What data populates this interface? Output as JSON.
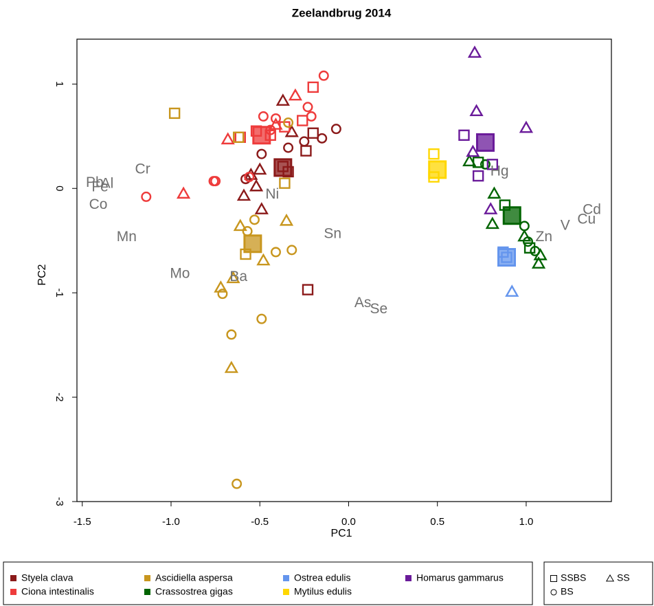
{
  "chart_data": {
    "type": "scatter",
    "title": "Zeelandbrug 2014",
    "xlabel": "PC1",
    "ylabel": "PC2",
    "xlim": [
      -1.53,
      1.48
    ],
    "ylim": [
      -3.0,
      1.43
    ],
    "xticks": [
      -1.5,
      {
        "value": -1.0,
        "label": "-1.0"
      },
      -0.5,
      {
        "value": 0.0,
        "label": "0.0"
      },
      0.5,
      {
        "value": 1.0,
        "label": "1.0"
      }
    ],
    "yticks": [
      -3,
      -2,
      -1,
      0,
      1
    ],
    "variable_color": "#707070",
    "variables": [
      {
        "label": "Pb",
        "x": -1.43,
        "y": 0.05
      },
      {
        "label": "Fe",
        "x": -1.4,
        "y": 0.01
      },
      {
        "label": "Al",
        "x": -1.36,
        "y": 0.04
      },
      {
        "label": "Cr",
        "x": -1.16,
        "y": 0.18
      },
      {
        "label": "Co",
        "x": -1.41,
        "y": -0.16
      },
      {
        "label": "Mn",
        "x": -1.25,
        "y": -0.47
      },
      {
        "label": "Mo",
        "x": -0.95,
        "y": -0.82
      },
      {
        "label": "Ba",
        "x": -0.62,
        "y": -0.85
      },
      {
        "label": "Ni",
        "x": -0.43,
        "y": -0.06
      },
      {
        "label": "Sn",
        "x": -0.09,
        "y": -0.44
      },
      {
        "label": "As",
        "x": 0.08,
        "y": -1.1
      },
      {
        "label": "Se",
        "x": 0.17,
        "y": -1.16
      },
      {
        "label": "Hg",
        "x": 0.85,
        "y": 0.16
      },
      {
        "label": "Zn",
        "x": 1.1,
        "y": -0.47
      },
      {
        "label": "V",
        "x": 1.22,
        "y": -0.36
      },
      {
        "label": "Cu",
        "x": 1.34,
        "y": -0.3
      },
      {
        "label": "Cd",
        "x": 1.37,
        "y": -0.21
      }
    ],
    "shapes": [
      {
        "name": "SSBS",
        "marker": "square"
      },
      {
        "name": "BS",
        "marker": "circle"
      },
      {
        "name": "SS",
        "marker": "triangle"
      }
    ],
    "series": [
      {
        "name": "Styela clava",
        "color": "#8b1a1a",
        "points": [
          {
            "marker": "square",
            "x": [
              -0.37,
              -0.24,
              -0.2,
              -0.23,
              -0.34
            ],
            "y": [
              0.21,
              0.36,
              0.53,
              -0.97,
              0.16
            ]
          },
          {
            "marker": "triangle",
            "x": [
              -0.37,
              -0.55,
              -0.5,
              -0.59,
              -0.49,
              -0.52,
              -0.32
            ],
            "y": [
              0.84,
              0.13,
              0.18,
              -0.07,
              -0.2,
              0.02,
              0.54
            ]
          },
          {
            "marker": "circle",
            "x": [
              -0.07,
              -0.15,
              -0.34,
              -0.25,
              -0.58,
              -0.49
            ],
            "y": [
              0.57,
              0.48,
              0.39,
              0.45,
              0.09,
              0.33
            ]
          }
        ],
        "centroid": {
          "x": -0.37,
          "y": 0.2
        }
      },
      {
        "name": "Ciona intestinalis",
        "color": "#ee3b3b",
        "points": [
          {
            "marker": "square",
            "x": [
              -0.2,
              -0.26,
              -0.44,
              -0.52,
              -0.61,
              -0.36
            ],
            "y": [
              0.97,
              0.65,
              0.51,
              0.55,
              0.49,
              0.59
            ]
          },
          {
            "marker": "triangle",
            "x": [
              -0.3,
              -0.68,
              -0.93,
              -0.41
            ],
            "y": [
              0.89,
              0.47,
              -0.05,
              0.61
            ]
          },
          {
            "marker": "circle",
            "x": [
              -0.14,
              -0.23,
              -0.21,
              -0.48,
              -0.41,
              -0.75,
              -0.76,
              -1.14,
              -0.56,
              -0.44
            ],
            "y": [
              1.08,
              0.78,
              0.69,
              0.69,
              0.67,
              0.07,
              0.07,
              -0.08,
              0.11,
              0.56
            ]
          }
        ],
        "centroid": {
          "x": -0.49,
          "y": 0.51
        }
      },
      {
        "name": "Ascidiella aspersa",
        "color": "#c8961e",
        "points": [
          {
            "marker": "square",
            "x": [
              -0.98,
              -0.62,
              -0.36,
              -0.58
            ],
            "y": [
              0.72,
              0.49,
              0.05,
              -0.63
            ]
          },
          {
            "marker": "triangle",
            "x": [
              -0.35,
              -0.61,
              -0.48,
              -0.65,
              -0.72,
              -0.66
            ],
            "y": [
              -0.31,
              -0.36,
              -0.69,
              -0.86,
              -0.95,
              -1.72
            ]
          },
          {
            "marker": "circle",
            "x": [
              -0.53,
              -0.32,
              -0.41,
              -0.49,
              -0.66,
              -0.71,
              -0.63,
              -0.34,
              -0.57
            ],
            "y": [
              -0.3,
              -0.59,
              -0.61,
              -1.25,
              -1.4,
              -1.01,
              -2.83,
              0.63,
              -0.41
            ]
          }
        ],
        "centroid": {
          "x": -0.54,
          "y": -0.53
        }
      },
      {
        "name": "Crassostrea gigas",
        "color": "#006400",
        "points": [
          {
            "marker": "square",
            "x": [
              0.73,
              0.88,
              1.02
            ],
            "y": [
              0.25,
              -0.16,
              -0.57
            ]
          },
          {
            "marker": "triangle",
            "x": [
              0.82,
              0.81,
              0.99,
              1.08,
              1.07,
              0.68
            ],
            "y": [
              -0.05,
              -0.34,
              -0.46,
              -0.64,
              -0.72,
              0.26
            ]
          },
          {
            "marker": "circle",
            "x": [
              0.99,
              1.05,
              1.01,
              0.77
            ],
            "y": [
              -0.36,
              -0.6,
              -0.51,
              0.23
            ]
          }
        ],
        "centroid": {
          "x": 0.92,
          "y": -0.26
        }
      },
      {
        "name": "Ostrea edulis",
        "color": "#6495ed",
        "points": [
          {
            "marker": "square",
            "x": [
              0.89,
              0.87
            ],
            "y": [
              -0.66,
              -0.61
            ]
          },
          {
            "marker": "triangle",
            "x": [
              0.92
            ],
            "y": [
              -0.99
            ]
          }
        ],
        "centroid": {
          "x": 0.89,
          "y": -0.66
        }
      },
      {
        "name": "Mytilus edulis",
        "color": "#ffd700",
        "points": [
          {
            "marker": "square",
            "x": [
              0.48,
              0.48
            ],
            "y": [
              0.33,
              0.11
            ]
          }
        ],
        "centroid": {
          "x": 0.5,
          "y": 0.18
        }
      },
      {
        "name": "Homarus gammarus",
        "color": "#6a1b9a",
        "points": [
          {
            "marker": "square",
            "x": [
              0.65,
              0.73,
              0.81
            ],
            "y": [
              0.51,
              0.12,
              0.23
            ]
          },
          {
            "marker": "triangle",
            "x": [
              0.71,
              0.72,
              1.0,
              0.8,
              0.7
            ],
            "y": [
              1.3,
              0.74,
              0.58,
              -0.2,
              0.35
            ]
          }
        ],
        "centroid": {
          "x": 0.77,
          "y": 0.44
        }
      }
    ]
  }
}
